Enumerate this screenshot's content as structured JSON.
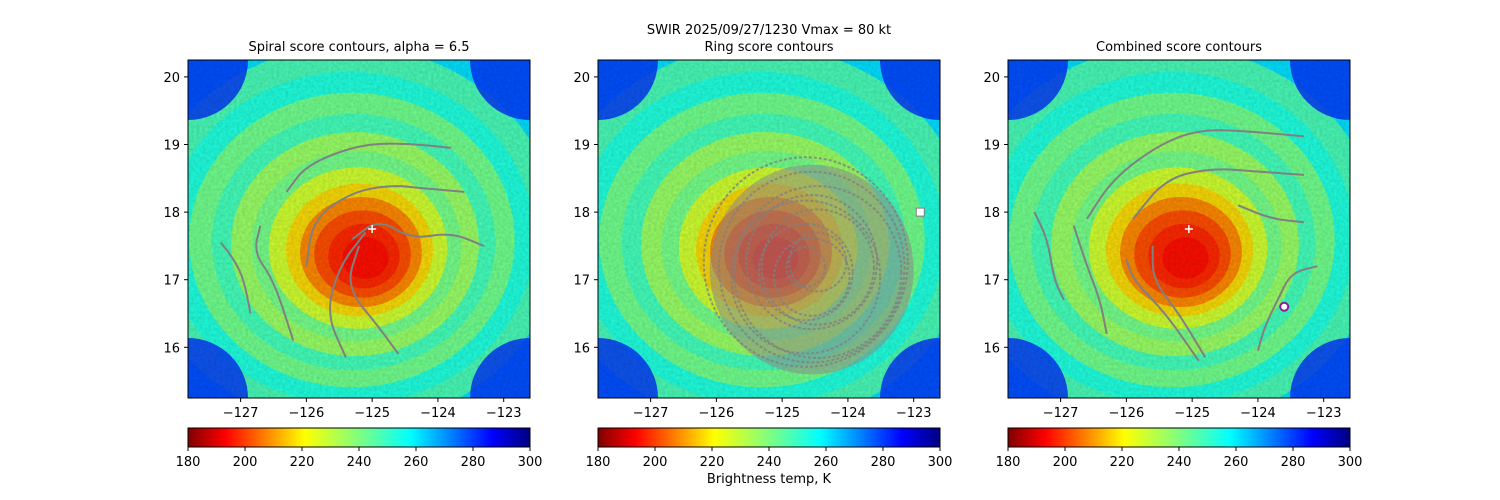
{
  "figure": {
    "suptitle": "SWIR  2025/09/27/1230    Vmax = 80 kt",
    "colorbar_label": "Brightness temp, K"
  },
  "chart_data": [
    {
      "type": "heatmap",
      "title": "Spiral score contours, alpha =  6.5",
      "xlim": [
        -127.8,
        -122.6
      ],
      "ylim": [
        15.25,
        20.25
      ],
      "xticks": [
        -127,
        -126,
        -125,
        -124,
        -123
      ],
      "xtick_labels": [
        "−127",
        "−126",
        "−125",
        "−124",
        "−123"
      ],
      "yticks": [
        16,
        17,
        18,
        19,
        20
      ],
      "ytick_labels": [
        "16",
        "17",
        "18",
        "19",
        "20"
      ],
      "colorbar": {
        "min": 180,
        "max": 300,
        "ticks": [
          180,
          200,
          220,
          240,
          260,
          280,
          300
        ],
        "tick_labels": [
          "180",
          "200",
          "220",
          "240",
          "260",
          "280",
          "300"
        ],
        "cmap": "jet_r"
      },
      "center_marker": {
        "lon": -125.0,
        "lat": 17.75
      },
      "contours": [
        [
          [
            -127.3,
            17.55
          ],
          [
            -127.1,
            17.3
          ],
          [
            -126.95,
            17.0
          ],
          [
            -126.85,
            16.5
          ]
        ],
        [
          [
            -126.7,
            17.8
          ],
          [
            -126.8,
            17.4
          ],
          [
            -126.5,
            17.0
          ],
          [
            -126.2,
            16.1
          ]
        ],
        [
          [
            -125.2,
            17.5
          ],
          [
            -125.4,
            16.9
          ],
          [
            -124.9,
            16.3
          ],
          [
            -124.6,
            15.9
          ]
        ],
        [
          [
            -125.1,
            17.7
          ],
          [
            -125.5,
            17.2
          ],
          [
            -125.7,
            16.5
          ],
          [
            -125.4,
            15.85
          ]
        ],
        [
          [
            -126.3,
            18.3
          ],
          [
            -126.0,
            18.7
          ],
          [
            -125.2,
            19.0
          ],
          [
            -124.5,
            19.02
          ],
          [
            -123.8,
            18.95
          ]
        ],
        [
          [
            -126.0,
            17.2
          ],
          [
            -125.9,
            17.9
          ],
          [
            -125.3,
            18.3
          ],
          [
            -124.7,
            18.4
          ],
          [
            -124.2,
            18.35
          ],
          [
            -123.6,
            18.3
          ]
        ],
        [
          [
            -125.3,
            17.6
          ],
          [
            -124.9,
            17.9
          ],
          [
            -124.4,
            17.6
          ],
          [
            -123.8,
            17.7
          ],
          [
            -123.3,
            17.5
          ]
        ]
      ]
    },
    {
      "type": "heatmap",
      "title": "Ring score contours",
      "xlim": [
        -127.8,
        -122.6
      ],
      "ylim": [
        15.25,
        20.25
      ],
      "xticks": [
        -127,
        -126,
        -125,
        -124,
        -123
      ],
      "xtick_labels": [
        "−127",
        "−126",
        "−125",
        "−124",
        "−123"
      ],
      "yticks": [
        16,
        17,
        18,
        19,
        20
      ],
      "ytick_labels": [
        "16",
        "17",
        "18",
        "19",
        "20"
      ],
      "colorbar": {
        "min": 180,
        "max": 300,
        "ticks": [
          180,
          200,
          220,
          240,
          260,
          280,
          300
        ],
        "tick_labels": [
          "180",
          "200",
          "220",
          "240",
          "260",
          "280",
          "300"
        ],
        "cmap": "jet_r"
      },
      "center_marker": {
        "lon": -122.9,
        "lat": 18.0
      },
      "ring_region": {
        "center_lon": -124.55,
        "center_lat": 17.15,
        "radius_deg": 1.55
      },
      "contours": []
    },
    {
      "type": "heatmap",
      "title": "Combined score contours",
      "xlim": [
        -127.8,
        -122.6
      ],
      "ylim": [
        15.25,
        20.25
      ],
      "xticks": [
        -127,
        -126,
        -125,
        -124,
        -123
      ],
      "xtick_labels": [
        "−127",
        "−126",
        "−125",
        "−124",
        "−123"
      ],
      "yticks": [
        16,
        17,
        18,
        19,
        20
      ],
      "ytick_labels": [
        "16",
        "17",
        "18",
        "19",
        "20"
      ],
      "colorbar": {
        "min": 180,
        "max": 300,
        "ticks": [
          180,
          200,
          220,
          240,
          260,
          280,
          300
        ],
        "tick_labels": [
          "180",
          "200",
          "220",
          "240",
          "260",
          "280",
          "300"
        ],
        "cmap": "jet_r"
      },
      "center_marker": {
        "lon": -125.05,
        "lat": 17.75
      },
      "secondary_marker": {
        "lon": -123.6,
        "lat": 16.6
      },
      "contours": [
        [
          [
            -127.4,
            18.0
          ],
          [
            -127.2,
            17.6
          ],
          [
            -127.1,
            17.0
          ],
          [
            -126.95,
            16.7
          ]
        ],
        [
          [
            -126.8,
            17.8
          ],
          [
            -126.6,
            17.2
          ],
          [
            -126.4,
            16.7
          ],
          [
            -126.3,
            16.2
          ]
        ],
        [
          [
            -126.0,
            17.3
          ],
          [
            -125.9,
            17.0
          ],
          [
            -125.4,
            16.5
          ],
          [
            -124.9,
            15.8
          ]
        ],
        [
          [
            -125.6,
            17.5
          ],
          [
            -125.6,
            17.0
          ],
          [
            -125.2,
            16.5
          ],
          [
            -124.8,
            15.85
          ]
        ],
        [
          [
            -126.6,
            17.9
          ],
          [
            -126.2,
            18.5
          ],
          [
            -125.5,
            19.0
          ],
          [
            -124.9,
            19.22
          ],
          [
            -124.2,
            19.2
          ],
          [
            -123.3,
            19.12
          ]
        ],
        [
          [
            -125.9,
            17.9
          ],
          [
            -125.4,
            18.5
          ],
          [
            -124.7,
            18.65
          ],
          [
            -124.0,
            18.6
          ],
          [
            -123.3,
            18.55
          ]
        ],
        [
          [
            -124.3,
            18.1
          ],
          [
            -123.8,
            17.9
          ],
          [
            -123.3,
            17.85
          ]
        ],
        [
          [
            -123.1,
            17.2
          ],
          [
            -123.5,
            17.1
          ],
          [
            -123.7,
            16.7
          ],
          [
            -123.9,
            16.3
          ],
          [
            -124.0,
            15.95
          ]
        ]
      ]
    }
  ]
}
